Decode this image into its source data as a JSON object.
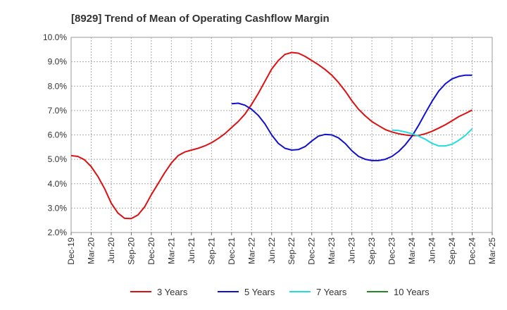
{
  "chart_data": {
    "type": "line",
    "title": "[8929]  Trend of Mean of Operating Cashflow Margin",
    "xlabel": "",
    "ylabel": "",
    "ylim": [
      2.0,
      10.0
    ],
    "y_ticks": [
      "2.0%",
      "3.0%",
      "4.0%",
      "5.0%",
      "6.0%",
      "7.0%",
      "8.0%",
      "9.0%",
      "10.0%"
    ],
    "x_ticks": [
      "Dec-19",
      "Mar-20",
      "Jun-20",
      "Sep-20",
      "Dec-20",
      "Mar-21",
      "Jun-21",
      "Sep-21",
      "Dec-21",
      "Mar-22",
      "Jun-22",
      "Sep-22",
      "Dec-22",
      "Mar-23",
      "Jun-23",
      "Sep-23",
      "Dec-23",
      "Mar-24",
      "Jun-24",
      "Sep-24",
      "Dec-24",
      "Mar-25"
    ],
    "grid": true,
    "legend_position": "bottom",
    "series": [
      {
        "name": "3 Years",
        "color": "#dd1111",
        "x": [
          "2019-12",
          "2020-01",
          "2020-02",
          "2020-03",
          "2020-04",
          "2020-05",
          "2020-06",
          "2020-07",
          "2020-08",
          "2020-09",
          "2020-10",
          "2020-11",
          "2020-12",
          "2021-01",
          "2021-02",
          "2021-03",
          "2021-04",
          "2021-05",
          "2021-06",
          "2021-07",
          "2021-08",
          "2021-09",
          "2021-10",
          "2021-11",
          "2021-12",
          "2022-01",
          "2022-02",
          "2022-03",
          "2022-04",
          "2022-05",
          "2022-06",
          "2022-07",
          "2022-08",
          "2022-09",
          "2022-10",
          "2022-11",
          "2022-12",
          "2023-01",
          "2023-02",
          "2023-03",
          "2023-04",
          "2023-05",
          "2023-06",
          "2023-07",
          "2023-08",
          "2023-09",
          "2023-10",
          "2023-11",
          "2023-12",
          "2024-01",
          "2024-02",
          "2024-03",
          "2024-04",
          "2024-05",
          "2024-06",
          "2024-07",
          "2024-08",
          "2024-09",
          "2024-10",
          "2024-11",
          "2024-12"
        ],
        "values": [
          5.15,
          5.12,
          4.98,
          4.7,
          4.3,
          3.8,
          3.2,
          2.8,
          2.58,
          2.57,
          2.72,
          3.05,
          3.55,
          4.0,
          4.45,
          4.85,
          5.15,
          5.3,
          5.38,
          5.45,
          5.55,
          5.68,
          5.85,
          6.05,
          6.3,
          6.55,
          6.85,
          7.25,
          7.7,
          8.2,
          8.7,
          9.05,
          9.3,
          9.38,
          9.35,
          9.22,
          9.05,
          8.88,
          8.68,
          8.45,
          8.15,
          7.8,
          7.4,
          7.05,
          6.78,
          6.55,
          6.38,
          6.22,
          6.12,
          6.05,
          6.0,
          5.97,
          5.98,
          6.05,
          6.15,
          6.28,
          6.42,
          6.58,
          6.75,
          6.88,
          7.02
        ]
      },
      {
        "name": "5 Years",
        "color": "#1111cc",
        "x": [
          "2021-12",
          "2022-01",
          "2022-02",
          "2022-03",
          "2022-04",
          "2022-05",
          "2022-06",
          "2022-07",
          "2022-08",
          "2022-09",
          "2022-10",
          "2022-11",
          "2022-12",
          "2023-01",
          "2023-02",
          "2023-03",
          "2023-04",
          "2023-05",
          "2023-06",
          "2023-07",
          "2023-08",
          "2023-09",
          "2023-10",
          "2023-11",
          "2023-12",
          "2024-01",
          "2024-02",
          "2024-03",
          "2024-04",
          "2024-05",
          "2024-06",
          "2024-07",
          "2024-08",
          "2024-09",
          "2024-10",
          "2024-11",
          "2024-12"
        ],
        "values": [
          7.28,
          7.3,
          7.22,
          7.05,
          6.8,
          6.45,
          6.0,
          5.65,
          5.45,
          5.38,
          5.4,
          5.52,
          5.75,
          5.95,
          6.02,
          6.0,
          5.88,
          5.65,
          5.35,
          5.12,
          5.0,
          4.95,
          4.95,
          5.0,
          5.12,
          5.32,
          5.6,
          5.95,
          6.4,
          6.9,
          7.38,
          7.8,
          8.1,
          8.3,
          8.4,
          8.45,
          8.45
        ]
      },
      {
        "name": "7 Years",
        "color": "#22dddd",
        "x": [
          "2023-12",
          "2024-01",
          "2024-02",
          "2024-03",
          "2024-04",
          "2024-05",
          "2024-06",
          "2024-07",
          "2024-08",
          "2024-09",
          "2024-10",
          "2024-11",
          "2024-12"
        ],
        "values": [
          6.2,
          6.18,
          6.12,
          6.05,
          5.95,
          5.82,
          5.65,
          5.55,
          5.55,
          5.62,
          5.78,
          5.98,
          6.25
        ]
      },
      {
        "name": "10 Years",
        "color": "#228822",
        "x": [],
        "values": []
      }
    ]
  }
}
